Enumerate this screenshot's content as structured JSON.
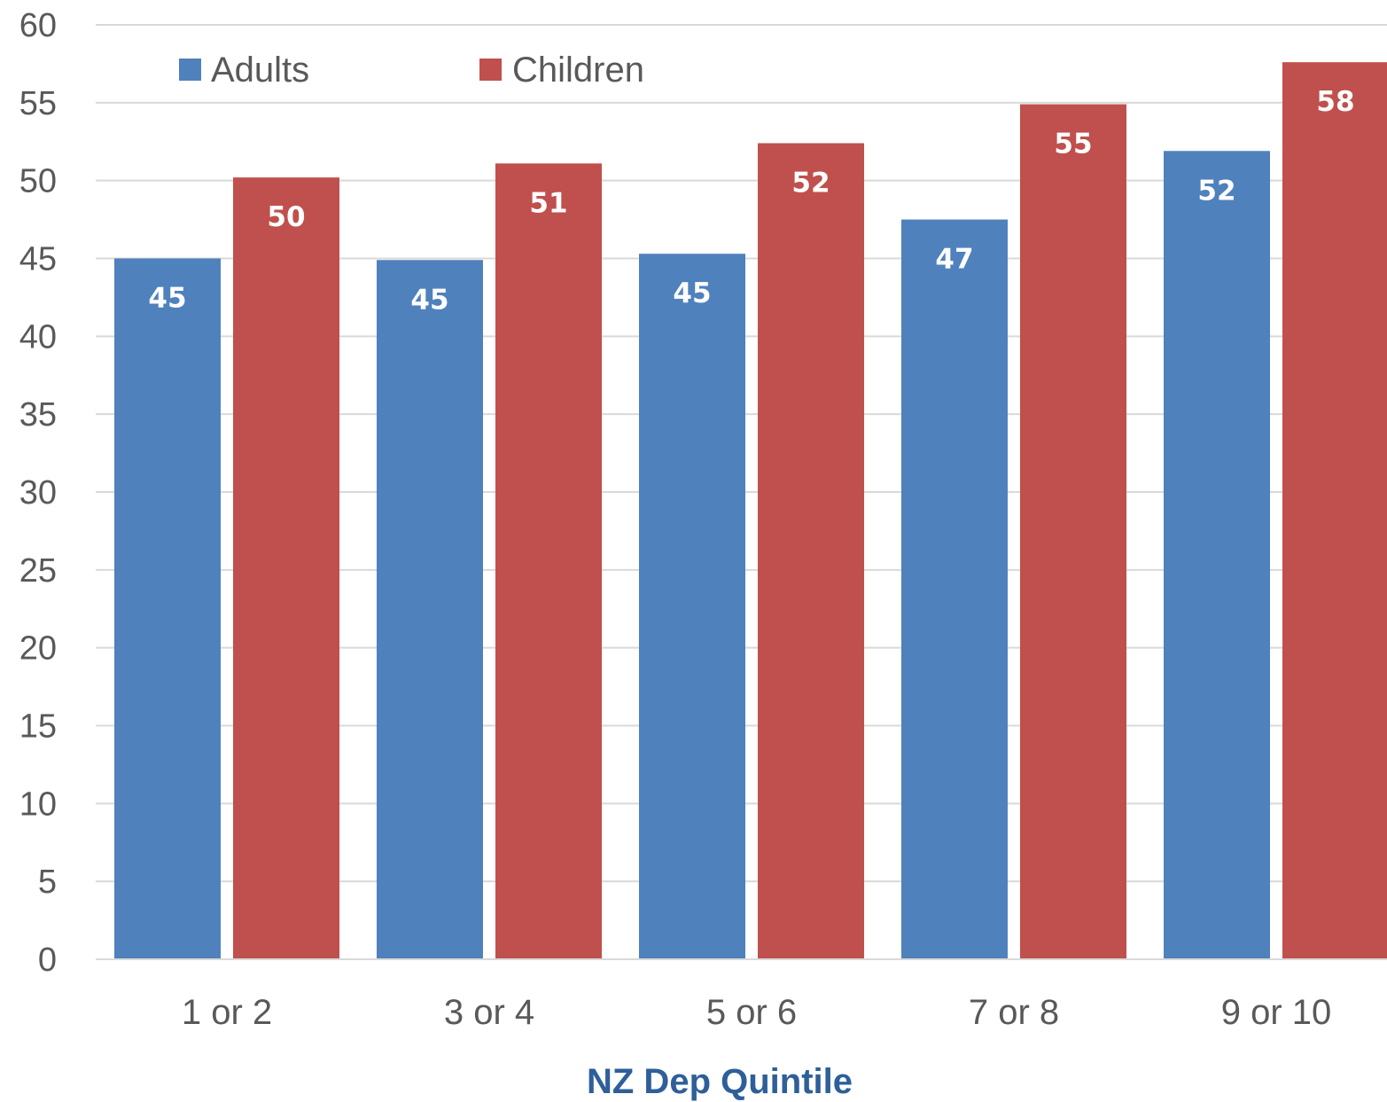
{
  "chart_data": {
    "type": "bar",
    "categories": [
      "1 or 2",
      "3 or 4",
      "5 or 6",
      "7 or 8",
      "9 or 10"
    ],
    "series": [
      {
        "name": "Adults",
        "color": "#4f81bd",
        "values": [
          45,
          44.9,
          45.3,
          47.5,
          51.9
        ],
        "labels": [
          "45",
          "45",
          "45",
          "47",
          "52"
        ]
      },
      {
        "name": "Children",
        "color": "#c0504d",
        "values": [
          50.2,
          51.1,
          52.4,
          54.9,
          57.6
        ],
        "labels": [
          "50",
          "51",
          "52",
          "55",
          "58"
        ]
      }
    ],
    "title": "",
    "xlabel": "NZ Dep Quintile",
    "ylabel": "",
    "ylim": [
      0,
      60
    ],
    "yticks": [
      "0",
      "5",
      "10",
      "15",
      "20",
      "25",
      "30",
      "35",
      "40",
      "45",
      "50",
      "55",
      "60"
    ],
    "grid": true,
    "legend_position": "top-left"
  }
}
